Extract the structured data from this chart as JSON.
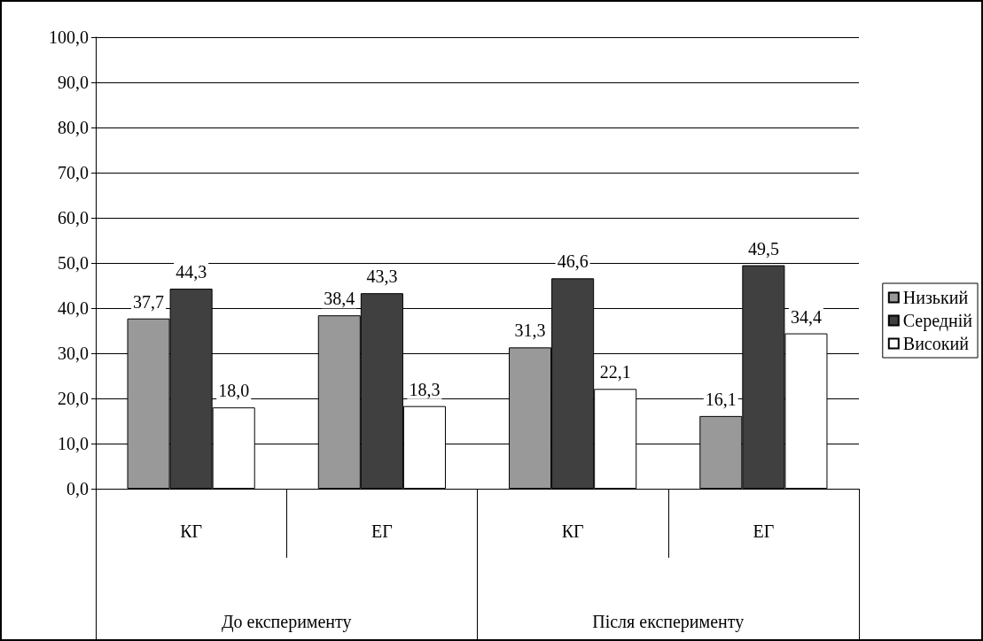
{
  "chart_data": {
    "type": "bar",
    "categories": [
      "КГ",
      "ЕГ",
      "КГ",
      "ЕГ"
    ],
    "series": [
      {
        "name": "Низький",
        "color": "#999999",
        "values": [
          37.7,
          38.4,
          31.3,
          16.1
        ],
        "value_labels": [
          "37,7",
          "38,4",
          "31,3",
          "16,1"
        ]
      },
      {
        "name": "Середній",
        "color": "#404040",
        "values": [
          44.3,
          43.3,
          46.6,
          49.5
        ],
        "value_labels": [
          "44,3",
          "43,3",
          "46,6",
          "49,5"
        ]
      },
      {
        "name": "Високий",
        "color": "#ffffff",
        "values": [
          18.0,
          18.3,
          22.1,
          34.4
        ],
        "value_labels": [
          "18,0",
          "18,3",
          "22,1",
          "34,4"
        ]
      }
    ],
    "annotations": [
      "До експерименту",
      "Після експерименту"
    ],
    "ylim": [
      0,
      100
    ],
    "yticks": [
      {
        "value": 0,
        "label": "0,0"
      },
      {
        "value": 10,
        "label": "10,0"
      },
      {
        "value": 20,
        "label": "20,0"
      },
      {
        "value": 30,
        "label": "30,0"
      },
      {
        "value": 40,
        "label": "40,0"
      },
      {
        "value": 50,
        "label": "50,0"
      },
      {
        "value": 60,
        "label": "60,0"
      },
      {
        "value": 70,
        "label": "70,0"
      },
      {
        "value": 80,
        "label": "80,0"
      },
      {
        "value": 90,
        "label": "90,0"
      },
      {
        "value": 100,
        "label": "100,0"
      }
    ],
    "grid": "y",
    "legend": "right"
  }
}
